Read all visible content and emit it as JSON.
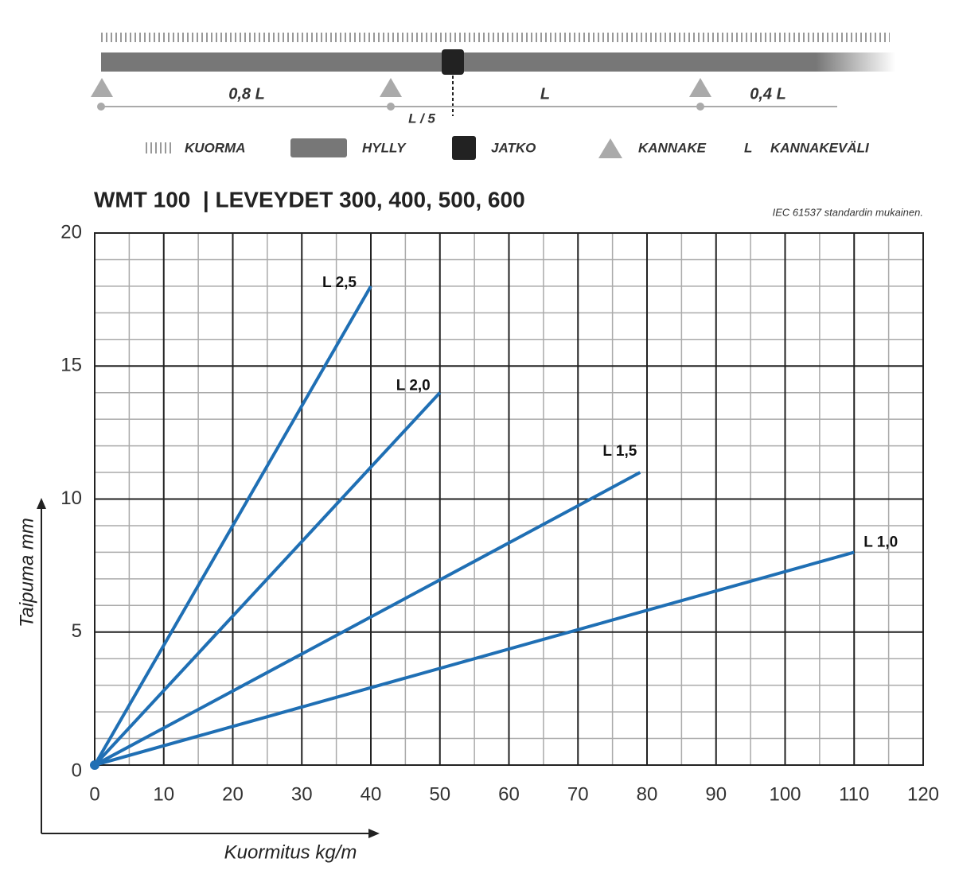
{
  "diagram": {
    "spans": [
      "0,8 L",
      "L",
      "0,4 L"
    ],
    "offset_label": "L / 5",
    "legend": [
      "KUORMA",
      "HYLLY",
      "JATKO",
      "KANNAKE"
    ],
    "legend_span": {
      "symbol": "L",
      "label": "KANNAKEVÄLI"
    }
  },
  "chart_data": {
    "type": "line",
    "title": "WMT 100  | LEVEYDET 300, 400, 500, 600",
    "note": "IEC 61537 standardin mukainen.",
    "xlabel": "Kuormitus kg/m",
    "ylabel": "Taipuma mm",
    "xlim": [
      0,
      120
    ],
    "ylim": [
      0,
      20
    ],
    "xticks": [
      0,
      10,
      20,
      30,
      40,
      50,
      60,
      70,
      80,
      90,
      100,
      110,
      120
    ],
    "yticks": [
      0,
      5,
      10,
      15,
      20
    ],
    "grid": true,
    "series": [
      {
        "name": "L 2,5",
        "color": "#1f6fb4",
        "x": [
          0,
          40
        ],
        "values": [
          0,
          18
        ]
      },
      {
        "name": "L 2,0",
        "color": "#1f6fb4",
        "x": [
          0,
          50
        ],
        "values": [
          0,
          14
        ]
      },
      {
        "name": "L 1,5",
        "color": "#1f6fb4",
        "x": [
          0,
          79
        ],
        "values": [
          0,
          11
        ]
      },
      {
        "name": "L 1,0",
        "color": "#1f6fb4",
        "x": [
          0,
          110
        ],
        "values": [
          0,
          8
        ]
      }
    ]
  }
}
